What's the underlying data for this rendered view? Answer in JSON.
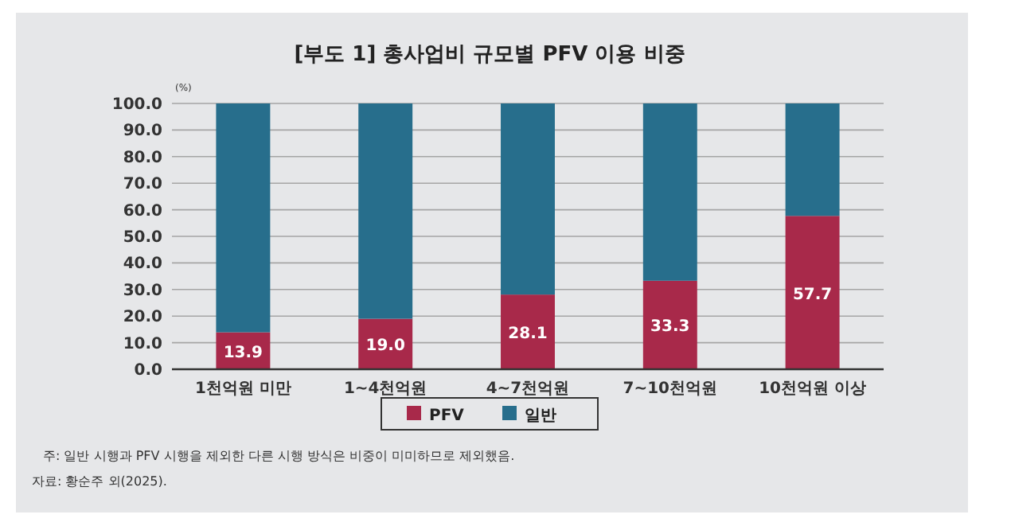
{
  "chart_data": {
    "type": "bar",
    "title": "[부도 1] 총사업비 규모별 PFV 이용 비중",
    "ylabel": "(%)",
    "categories": [
      "1천억원 미만",
      "1~4천억원",
      "4~7천억원",
      "7~10천억원",
      "10천억원 이상"
    ],
    "stacked": true,
    "series": [
      {
        "name": "PFV",
        "color": "#a8294a",
        "values": [
          13.9,
          19.0,
          28.1,
          33.3,
          57.7
        ],
        "value_labels": [
          "13.9",
          "19.0",
          "28.1",
          "33.3",
          "57.7"
        ]
      },
      {
        "name": "일반",
        "color": "#276e8c",
        "values": [
          86.1,
          81.0,
          71.9,
          66.7,
          42.3
        ]
      }
    ],
    "ylim": [
      0,
      100
    ],
    "yticks": [
      {
        "value": 0,
        "label": "0.0"
      },
      {
        "value": 10,
        "label": "10.0"
      },
      {
        "value": 20,
        "label": "20.0"
      },
      {
        "value": 30,
        "label": "30.0"
      },
      {
        "value": 40,
        "label": "40.0"
      },
      {
        "value": 50,
        "label": "50.0"
      },
      {
        "value": 60,
        "label": "60.0"
      },
      {
        "value": 70,
        "label": "70.0"
      },
      {
        "value": 80,
        "label": "80.0"
      },
      {
        "value": 90,
        "label": "90.0"
      },
      {
        "value": 100,
        "label": "100.0"
      }
    ],
    "grid": "y",
    "legend": "bottom",
    "annotations": [
      "주: 일반 시행과 PFV 시행을 제외한 다른 시행 방식은 비중이 미미하므로 제외했음.",
      "자료: 황순주 외(2025)."
    ]
  }
}
